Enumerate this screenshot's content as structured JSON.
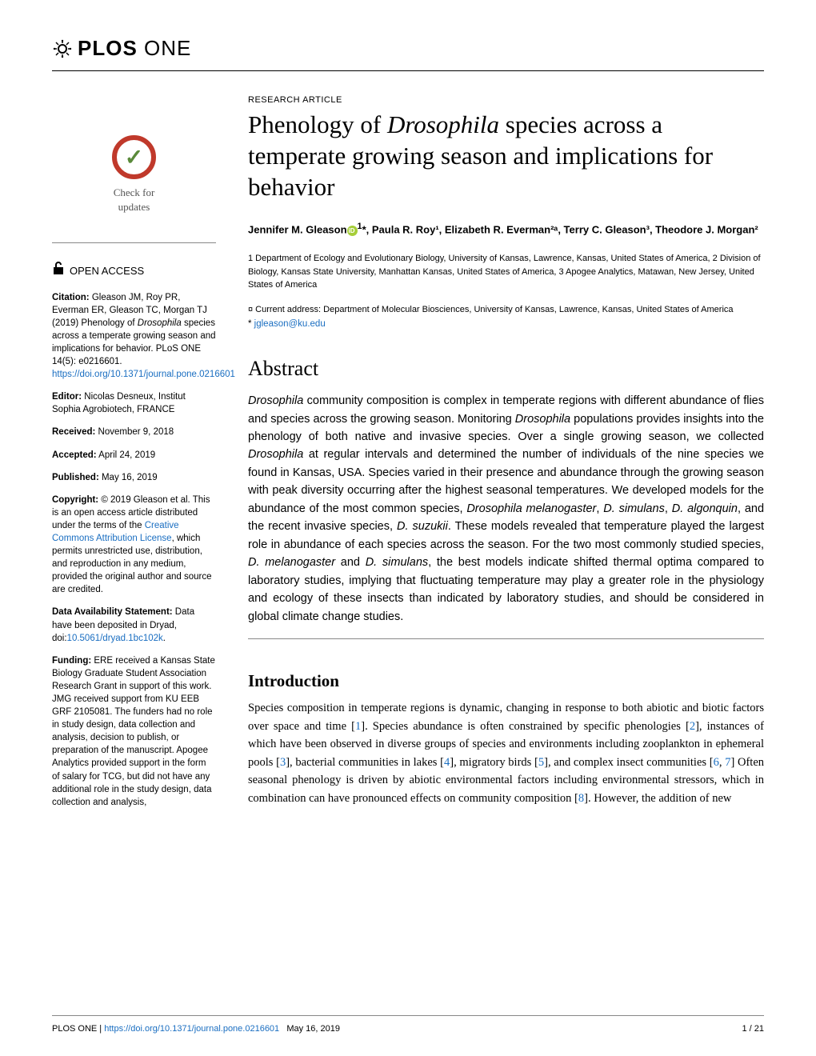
{
  "journal": {
    "logo_text": "PLOS",
    "logo_sub": "ONE"
  },
  "article": {
    "type": "RESEARCH ARTICLE",
    "title_pre": "Phenology of ",
    "title_italic": "Drosophila",
    "title_post": " species across a temperate growing season and implications for behavior",
    "authors_html": "Jennifer M. Gleason",
    "author_sup1": "1",
    "authors_rest": "*, Paula R. Roy¹, Elizabeth R. Everman²ᵃ, Terry C. Gleason³, Theodore J. Morgan²",
    "affiliations": "1 Department of Ecology and Evolutionary Biology, University of Kansas, Lawrence, Kansas, United States of America, 2 Division of Biology, Kansas State University, Manhattan Kansas, United States of America, 3 Apogee Analytics, Matawan, New Jersey, United States of America",
    "current_address": "¤ Current address: Department of Molecular Biosciences, University of Kansas, Lawrence, Kansas, United States of America",
    "email_prefix": "* ",
    "email": "jgleason@ku.edu"
  },
  "abstract": {
    "heading": "Abstract",
    "text_parts": [
      {
        "i": true,
        "t": "Drosophila"
      },
      {
        "i": false,
        "t": " community composition is complex in temperate regions with different abundance of flies and species across the growing season. Monitoring "
      },
      {
        "i": true,
        "t": "Drosophila"
      },
      {
        "i": false,
        "t": " populations provides insights into the phenology of both native and invasive species. Over a single growing season, we collected "
      },
      {
        "i": true,
        "t": "Drosophila"
      },
      {
        "i": false,
        "t": " at regular intervals and determined the number of individuals of the nine species we found in Kansas, USA. Species varied in their presence and abundance through the growing season with peak diversity occurring after the highest seasonal temperatures. We developed models for the abundance of the most common species, "
      },
      {
        "i": true,
        "t": "Drosophila melanogaster"
      },
      {
        "i": false,
        "t": ", "
      },
      {
        "i": true,
        "t": "D. simulans"
      },
      {
        "i": false,
        "t": ", "
      },
      {
        "i": true,
        "t": "D. algonquin"
      },
      {
        "i": false,
        "t": ", and the recent invasive species, "
      },
      {
        "i": true,
        "t": "D. suzukii"
      },
      {
        "i": false,
        "t": ". These models revealed that temperature played the largest role in abundance of each species across the season. For the two most commonly studied species, "
      },
      {
        "i": true,
        "t": "D. melanogaster"
      },
      {
        "i": false,
        "t": " and "
      },
      {
        "i": true,
        "t": "D. simulans"
      },
      {
        "i": false,
        "t": ", the best models indicate shifted thermal optima compared to laboratory studies, implying that fluctuating temperature may play a greater role in the physiology and ecology of these insects than indicated by laboratory studies, and should be considered in global climate change studies."
      }
    ]
  },
  "intro": {
    "heading": "Introduction",
    "text": "Species composition in temperate regions is dynamic, changing in response to both abiotic and biotic factors over space and time [1]. Species abundance is often constrained by specific phenologies [2], instances of which have been observed in diverse groups of species and environments including zooplankton in ephemeral pools [3], bacterial communities in lakes [4], migratory birds [5], and complex insect communities [6, 7] Often seasonal phenology is driven by abiotic environmental factors including environmental stressors, which in combination can have pronounced effects on community composition [8]. However, the addition of new",
    "refs": [
      "1",
      "2",
      "3",
      "4",
      "5",
      "6",
      "7",
      "8"
    ]
  },
  "sidebar": {
    "check_updates": "Check for updates",
    "open_access": "OPEN ACCESS",
    "citation_label": "Citation:",
    "citation_text": " Gleason JM, Roy PR, Everman ER, Gleason TC, Morgan TJ (2019) Phenology of ",
    "citation_italic": "Drosophila",
    "citation_text2": " species across a temperate growing season and implications for behavior. PLoS ONE 14(5): e0216601. ",
    "citation_doi": "https://doi.org/10.1371/journal.pone.0216601",
    "editor_label": "Editor:",
    "editor_text": " Nicolas Desneux, Institut Sophia Agrobiotech, FRANCE",
    "received_label": "Received:",
    "received_text": " November 9, 2018",
    "accepted_label": "Accepted:",
    "accepted_text": " April 24, 2019",
    "published_label": "Published:",
    "published_text": " May 16, 2019",
    "copyright_label": "Copyright:",
    "copyright_text": " © 2019 Gleason et al. This is an open access article distributed under the terms of the ",
    "cc_link": "Creative Commons Attribution License",
    "copyright_text2": ", which permits unrestricted use, distribution, and reproduction in any medium, provided the original author and source are credited.",
    "data_label": "Data Availability Statement:",
    "data_text": " Data have been deposited in Dryad, doi:",
    "data_doi": "10.5061/dryad.1bc102k",
    "data_text2": ".",
    "funding_label": "Funding:",
    "funding_text": " ERE received a Kansas State Biology Graduate Student Association Research Grant in support of this work. JMG received support from KU EEB GRF 2105081. The funders had no role in study design, data collection and analysis, decision to publish, or preparation of the manuscript. Apogee Analytics provided support in the form of salary for TCG, but did not have any additional role in the study design, data collection and analysis,"
  },
  "footer": {
    "journal": "PLOS ONE | ",
    "doi": "https://doi.org/10.1371/journal.pone.0216601",
    "date": "May 16, 2019",
    "page": "1 / 21"
  },
  "colors": {
    "link": "#1a6ec1",
    "orcid": "#a6ce39",
    "badge_ring": "#c0392b"
  }
}
